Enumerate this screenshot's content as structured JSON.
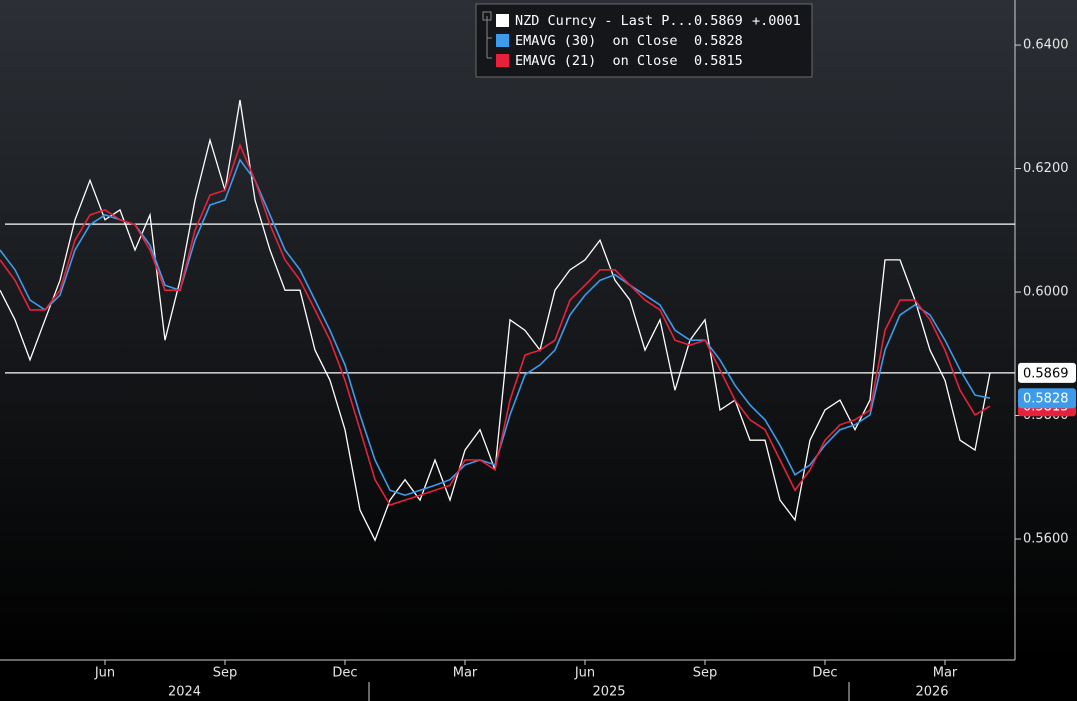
{
  "chart_data": {
    "type": "line",
    "categories": [
      null,
      null,
      null,
      null,
      null,
      null,
      null,
      "Jun",
      null,
      null,
      null,
      null,
      null,
      null,
      null,
      "Sep",
      null,
      null,
      null,
      null,
      null,
      null,
      null,
      "Dec",
      null,
      null,
      null,
      null,
      null,
      null,
      null,
      "Mar",
      null,
      null,
      null,
      null,
      null,
      null,
      null,
      "Jun",
      null,
      null,
      null,
      null,
      null,
      null,
      null,
      "Sep",
      null,
      null,
      null,
      null,
      null,
      null,
      null,
      "Dec",
      null,
      null,
      null,
      null,
      null,
      null,
      null,
      "Mar",
      null,
      null,
      null
    ],
    "years": [
      "2024",
      "2025",
      "2026"
    ],
    "series": [
      {
        "name": "NZD Curncy - Last P...",
        "color": "#ffffff",
        "change": "+.0001",
        "values": [
          0.6003,
          0.5955,
          0.589,
          0.5955,
          0.6019,
          0.6117,
          0.6181,
          0.6117,
          0.6133,
          0.6068,
          0.6125,
          0.5922,
          0.6019,
          0.6149,
          0.6246,
          0.6165,
          0.6311,
          0.6149,
          0.6068,
          0.6003,
          0.6003,
          0.5906,
          0.5857,
          0.5777,
          0.5647,
          0.5598,
          0.5663,
          0.5696,
          0.5663,
          0.5728,
          0.5663,
          0.5744,
          0.5777,
          0.5712,
          0.5955,
          0.5938,
          0.5906,
          0.6003,
          0.6036,
          0.6052,
          0.6084,
          0.6019,
          0.5987,
          0.5906,
          0.5955,
          0.5841,
          0.5922,
          0.5955,
          0.5809,
          0.5825,
          0.576,
          0.576,
          0.5663,
          0.5631,
          0.576,
          0.5809,
          0.5825,
          0.5777,
          0.5825,
          0.6052,
          0.6052,
          0.5987,
          0.5906,
          0.5857,
          0.576,
          0.5744,
          0.5869
        ]
      },
      {
        "name": "EMAVG (30)  on Close",
        "color": "#3d9be9",
        "values": [
          0.6068,
          0.6036,
          0.5987,
          0.5971,
          0.5995,
          0.6068,
          0.6109,
          0.6125,
          0.6117,
          0.6109,
          0.6076,
          0.6011,
          0.6003,
          0.6084,
          0.6141,
          0.6149,
          0.6214,
          0.6181,
          0.6125,
          0.6068,
          0.6036,
          0.5987,
          0.5938,
          0.5882,
          0.5801,
          0.5728,
          0.5679,
          0.5671,
          0.5679,
          0.5687,
          0.5696,
          0.572,
          0.5728,
          0.572,
          0.5801,
          0.5866,
          0.5882,
          0.5906,
          0.5963,
          0.5995,
          0.6019,
          0.6028,
          0.6011,
          0.5995,
          0.5979,
          0.5938,
          0.5922,
          0.5922,
          0.589,
          0.5849,
          0.5817,
          0.5793,
          0.5752,
          0.5704,
          0.572,
          0.5752,
          0.5777,
          0.5785,
          0.5801,
          0.5906,
          0.5963,
          0.5979,
          0.5963,
          0.5922,
          0.5874,
          0.5833,
          0.5828
        ]
      },
      {
        "name": "EMAVG (21)  on Close",
        "color": "#e8213b",
        "values": [
          0.6052,
          0.6019,
          0.5971,
          0.5971,
          0.6003,
          0.6084,
          0.6125,
          0.6133,
          0.6117,
          0.6109,
          0.6068,
          0.6003,
          0.6003,
          0.61,
          0.6157,
          0.6165,
          0.6238,
          0.6181,
          0.6109,
          0.6052,
          0.6019,
          0.5971,
          0.5922,
          0.5857,
          0.5777,
          0.5696,
          0.5655,
          0.5663,
          0.5671,
          0.5679,
          0.5687,
          0.5728,
          0.5728,
          0.5712,
          0.5825,
          0.5898,
          0.5906,
          0.5922,
          0.5987,
          0.6011,
          0.6036,
          0.6036,
          0.6011,
          0.5987,
          0.5971,
          0.5922,
          0.5914,
          0.5922,
          0.5874,
          0.5825,
          0.5793,
          0.5777,
          0.5728,
          0.5679,
          0.5712,
          0.576,
          0.5785,
          0.5793,
          0.5809,
          0.5938,
          0.5987,
          0.5987,
          0.5955,
          0.5906,
          0.5841,
          0.5801,
          0.5815
        ]
      }
    ],
    "reference_lines": [
      0.611,
      0.5869
    ],
    "ylim": [
      0.5404,
      0.6473
    ],
    "yticks": [
      {
        "value": 0.56,
        "label": "0.5600"
      },
      {
        "value": 0.58,
        "label": "0.5800"
      },
      {
        "value": 0.6,
        "label": "0.6000"
      },
      {
        "value": 0.62,
        "label": "0.6200"
      },
      {
        "value": 0.64,
        "label": "0.6400"
      }
    ],
    "grid": false
  }
}
